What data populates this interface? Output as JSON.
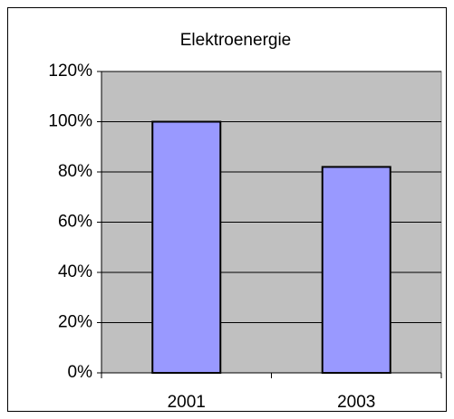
{
  "chart_data": {
    "type": "bar",
    "title": "Elektroenergie",
    "categories": [
      "2001",
      "2003"
    ],
    "values": [
      100,
      82
    ],
    "color": "#9999ff",
    "ylim": [
      0,
      120
    ],
    "yticks": [
      {
        "value": 0,
        "label": "0%"
      },
      {
        "value": 20,
        "label": "20%"
      },
      {
        "value": 40,
        "label": "40%"
      },
      {
        "value": 60,
        "label": "60%"
      },
      {
        "value": 80,
        "label": "80%"
      },
      {
        "value": 100,
        "label": "100%"
      },
      {
        "value": 120,
        "label": "120%"
      }
    ],
    "grid": true
  }
}
